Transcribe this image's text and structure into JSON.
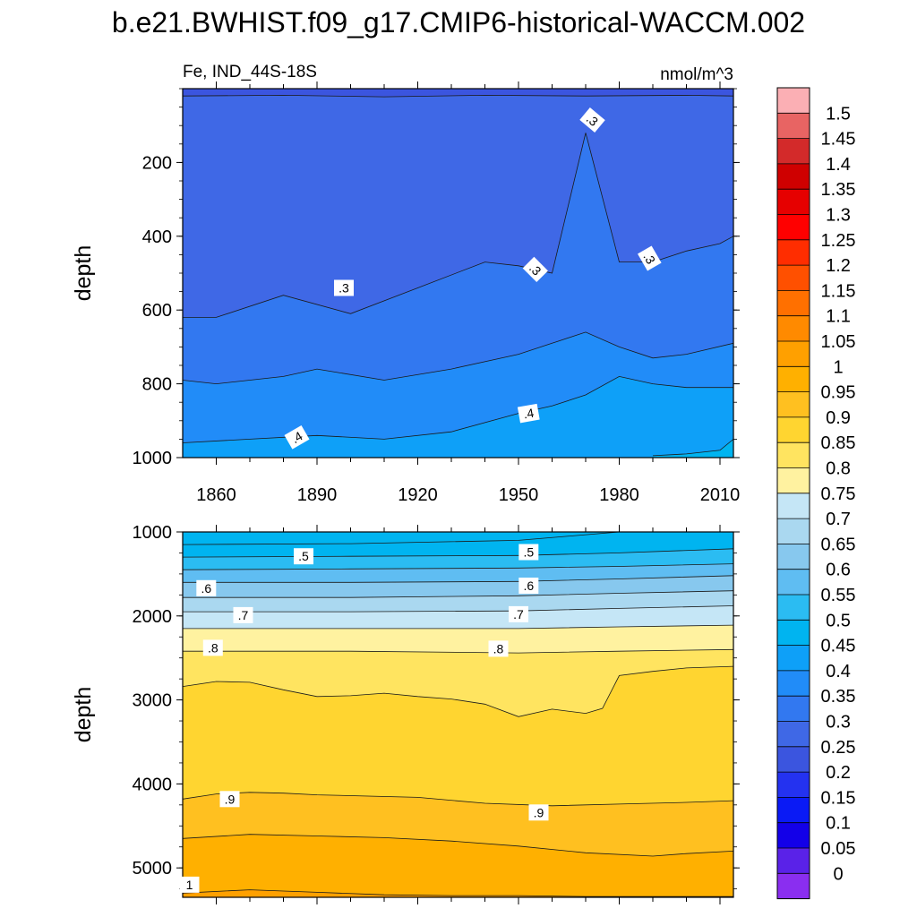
{
  "title": "b.e21.BWHIST.f09_g17.CMIP6-historical-WACCM.002",
  "left_label": "Fe, IND_44S-18S",
  "right_label": "nmol/m^3",
  "chart_data": [
    {
      "type": "heatmap",
      "panel": "upper",
      "ylabel": "depth",
      "ylim": [
        1000,
        0
      ],
      "yticks": [
        "200",
        "400",
        "600",
        "800",
        "1000"
      ],
      "xlim": [
        1850,
        2014
      ],
      "xticks": [
        "1860",
        "1890",
        "1920",
        "1950",
        "1980",
        "2010"
      ],
      "contour_labels": [
        ".3",
        ".3",
        ".3",
        ".3",
        ".4",
        ".4"
      ],
      "contours": [
        {
          "level": 0.25,
          "x": [
            1850,
            1880,
            1910,
            1940,
            1970,
            2000,
            2014
          ],
          "depth": [
            20,
            18,
            22,
            18,
            20,
            18,
            20
          ]
        },
        {
          "level": 0.3,
          "x": [
            1850,
            1860,
            1880,
            1900,
            1920,
            1940,
            1950,
            1960,
            1970,
            1980,
            1990,
            2000,
            2010,
            2014
          ],
          "depth": [
            620,
            620,
            560,
            610,
            540,
            470,
            480,
            500,
            120,
            470,
            470,
            440,
            420,
            400
          ]
        },
        {
          "level": 0.35,
          "x": [
            1850,
            1860,
            1880,
            1890,
            1910,
            1930,
            1950,
            1960,
            1970,
            1980,
            1990,
            2000,
            2014
          ],
          "depth": [
            790,
            800,
            780,
            760,
            790,
            760,
            720,
            690,
            660,
            700,
            730,
            720,
            690
          ]
        },
        {
          "level": 0.4,
          "x": [
            1850,
            1870,
            1890,
            1910,
            1930,
            1950,
            1960,
            1970,
            1980,
            1990,
            2000,
            2014
          ],
          "depth": [
            960,
            950,
            940,
            950,
            930,
            880,
            860,
            830,
            780,
            800,
            810,
            810
          ]
        },
        {
          "level": 0.45,
          "x": [
            1990,
            2000,
            2010,
            2014
          ],
          "depth": [
            995,
            990,
            980,
            950
          ]
        }
      ]
    },
    {
      "type": "heatmap",
      "panel": "lower",
      "ylabel": "depth",
      "ylim": [
        5350,
        1000
      ],
      "yticks": [
        "1000",
        "2000",
        "3000",
        "4000",
        "5000"
      ],
      "xlim": [
        1850,
        2014
      ],
      "contour_labels": [
        ".5",
        ".5",
        ".6",
        ".6",
        ".7",
        ".7",
        ".8",
        ".8",
        ".9",
        ".9",
        "1"
      ],
      "contours": [
        {
          "level": 0.45,
          "x": [
            1850,
            1900,
            1950,
            1980,
            2014
          ],
          "depth": [
            1150,
            1140,
            1100,
            1000,
            1000
          ]
        },
        {
          "level": 0.5,
          "x": [
            1850,
            1900,
            1950,
            1980,
            2014
          ],
          "depth": [
            1300,
            1290,
            1280,
            1250,
            1200
          ]
        },
        {
          "level": 0.55,
          "x": [
            1850,
            1900,
            1950,
            1980,
            2014
          ],
          "depth": [
            1450,
            1440,
            1430,
            1410,
            1380
          ]
        },
        {
          "level": 0.6,
          "x": [
            1850,
            1900,
            1950,
            1980,
            2014
          ],
          "depth": [
            1600,
            1600,
            1590,
            1560,
            1520
          ]
        },
        {
          "level": 0.65,
          "x": [
            1850,
            1900,
            1950,
            1980,
            2014
          ],
          "depth": [
            1780,
            1780,
            1760,
            1730,
            1700
          ]
        },
        {
          "level": 0.7,
          "x": [
            1850,
            1900,
            1950,
            1980,
            2014
          ],
          "depth": [
            1950,
            1950,
            1940,
            1910,
            1880
          ]
        },
        {
          "level": 0.75,
          "x": [
            1850,
            1900,
            1950,
            1980,
            2014
          ],
          "depth": [
            2150,
            2150,
            2150,
            2130,
            2110
          ]
        },
        {
          "level": 0.8,
          "x": [
            1850,
            1900,
            1950,
            1980,
            2014
          ],
          "depth": [
            2420,
            2420,
            2440,
            2420,
            2400
          ]
        },
        {
          "level": 0.85,
          "x": [
            1850,
            1860,
            1870,
            1880,
            1890,
            1900,
            1910,
            1920,
            1930,
            1940,
            1950,
            1960,
            1970,
            1975,
            1980,
            1990,
            2000,
            2014
          ],
          "depth": [
            2840,
            2780,
            2790,
            2880,
            2960,
            2950,
            2920,
            2960,
            2990,
            3050,
            3200,
            3110,
            3160,
            3100,
            2710,
            2660,
            2620,
            2600
          ]
        },
        {
          "level": 0.9,
          "x": [
            1850,
            1860,
            1870,
            1880,
            1890,
            1900,
            1920,
            1940,
            1960,
            1980,
            2000,
            2014
          ],
          "depth": [
            4180,
            4120,
            4100,
            4110,
            4130,
            4140,
            4160,
            4230,
            4260,
            4240,
            4220,
            4200
          ]
        },
        {
          "level": 0.95,
          "x": [
            1850,
            1870,
            1890,
            1910,
            1930,
            1950,
            1970,
            1990,
            2000,
            2014
          ],
          "depth": [
            4650,
            4600,
            4620,
            4640,
            4680,
            4740,
            4820,
            4860,
            4830,
            4800
          ]
        },
        {
          "level": 1.0,
          "x": [
            1850,
            1870,
            1890,
            1910,
            1930,
            1950,
            1970,
            1990,
            2014
          ],
          "depth": [
            5300,
            5260,
            5290,
            5320,
            5330,
            5330,
            5340,
            5340,
            5340
          ]
        }
      ]
    }
  ],
  "colorbar": {
    "labels": [
      "1.5",
      "1.45",
      "1.4",
      "1.35",
      "1.3",
      "1.25",
      "1.2",
      "1.15",
      "1.1",
      "1.05",
      "1",
      "0.95",
      "0.9",
      "0.85",
      "0.8",
      "0.75",
      "0.7",
      "0.65",
      "0.6",
      "0.55",
      "0.5",
      "0.45",
      "0.4",
      "0.35",
      "0.3",
      "0.25",
      "0.2",
      "0.15",
      "0.1",
      "0.05",
      "0"
    ],
    "colors": [
      "#fbafb4",
      "#e86463",
      "#d32a2a",
      "#cf0000",
      "#e60000",
      "#ff0000",
      "#ff2d00",
      "#ff5000",
      "#ff7000",
      "#ff8a00",
      "#ffa000",
      "#ffb000",
      "#ffc020",
      "#ffd530",
      "#ffe460",
      "#fff2a0",
      "#c5e6f6",
      "#aad8f0",
      "#87c8ee",
      "#5fbdf2",
      "#2bbcf2",
      "#00b4f0",
      "#0ea0f8",
      "#218cf8",
      "#3278f0",
      "#3f68e6",
      "#3b55df",
      "#2432f0",
      "#0a1af5",
      "#1300e8",
      "#5a22e8",
      "#8a2ef0"
    ]
  }
}
